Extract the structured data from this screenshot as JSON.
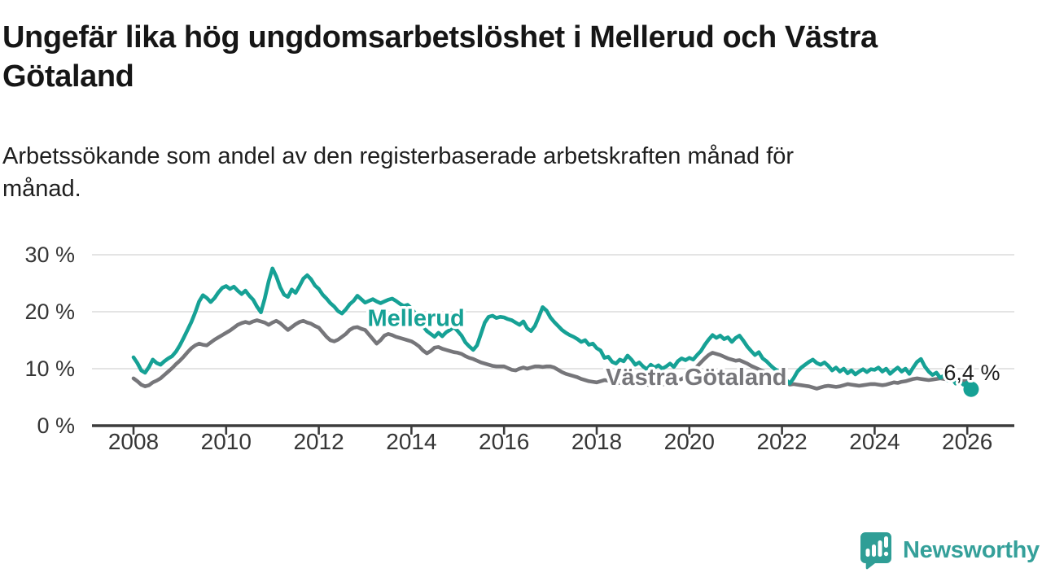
{
  "header": {
    "title_line1": "Ungefär lika hög ungdomsarbetslöshet i Mellerud och Västra",
    "title_line2": "Götaland",
    "subtitle_line1": "Arbetssökande som andel av den registerbaserade arbetskraften månad för",
    "subtitle_line2": "månad."
  },
  "chart_data": {
    "type": "line",
    "title": "Ungefär lika hög ungdomsarbetslöshet i Mellerud och Västra Götaland",
    "subtitle": "Arbetssökande som andel av den registerbaserade arbetskraften månad för månad.",
    "unit": "%",
    "x_start_year": 2008,
    "points_per_year": 12,
    "ylim": [
      0,
      30
    ],
    "grid": "horizontal",
    "y_ticks": [
      {
        "value": 0,
        "label": "0 %"
      },
      {
        "value": 10,
        "label": "10 %"
      },
      {
        "value": 20,
        "label": "20 %"
      },
      {
        "value": 30,
        "label": "30 %"
      }
    ],
    "x_ticks": [
      {
        "year": 2008,
        "label": "2008"
      },
      {
        "year": 2010,
        "label": "2010"
      },
      {
        "year": 2012,
        "label": "2012"
      },
      {
        "year": 2014,
        "label": "2014"
      },
      {
        "year": 2016,
        "label": "2016"
      },
      {
        "year": 2018,
        "label": "2018"
      },
      {
        "year": 2020,
        "label": "2020"
      },
      {
        "year": 2022,
        "label": "2022"
      },
      {
        "year": 2024,
        "label": "2024"
      },
      {
        "year": 2026,
        "label": "2026"
      }
    ],
    "series": [
      {
        "name": "Mellerud",
        "color": "#16a195",
        "label_pos": {
          "year": 2014.1,
          "value": 18.9
        },
        "end_dot": true,
        "values": [
          12.0,
          11.0,
          9.7,
          9.3,
          10.3,
          11.6,
          11.0,
          10.7,
          11.3,
          11.8,
          12.2,
          13.0,
          14.1,
          15.4,
          16.8,
          18.2,
          19.9,
          21.8,
          22.9,
          22.4,
          21.7,
          22.4,
          23.4,
          24.2,
          24.5,
          24.0,
          24.4,
          23.7,
          23.1,
          23.7,
          22.8,
          22.1,
          20.9,
          19.9,
          22.3,
          25.3,
          27.6,
          26.2,
          24.3,
          23.0,
          22.6,
          23.9,
          23.3,
          24.5,
          25.8,
          26.4,
          25.7,
          24.6,
          24.0,
          23.0,
          22.3,
          21.5,
          20.9,
          20.1,
          19.7,
          20.4,
          21.3,
          21.9,
          22.8,
          22.2,
          21.6,
          21.9,
          22.2,
          21.8,
          21.5,
          21.8,
          22.1,
          22.3,
          21.9,
          21.4,
          21.0,
          21.2,
          20.6,
          19.7,
          18.6,
          17.5,
          16.6,
          16.1,
          15.6,
          16.3,
          15.7,
          16.4,
          16.8,
          17.3,
          16.6,
          15.8,
          14.6,
          13.9,
          13.3,
          14.1,
          16.1,
          18.1,
          19.1,
          19.3,
          18.9,
          19.1,
          19.0,
          18.7,
          18.5,
          18.1,
          17.7,
          18.3,
          17.1,
          16.6,
          17.5,
          19.1,
          20.8,
          20.2,
          19.0,
          18.2,
          17.5,
          16.8,
          16.3,
          15.9,
          15.6,
          15.2,
          14.7,
          15.0,
          14.2,
          14.4,
          13.6,
          13.2,
          11.9,
          12.1,
          11.2,
          10.9,
          11.6,
          11.3,
          12.3,
          11.6,
          10.7,
          11.1,
          10.4,
          9.9,
          10.7,
          10.2,
          10.6,
          10.0,
          10.4,
          10.9,
          10.3,
          11.3,
          11.8,
          11.5,
          11.9,
          11.6,
          12.4,
          13.1,
          14.2,
          15.1,
          15.9,
          15.4,
          15.8,
          15.2,
          15.5,
          14.7,
          15.4,
          15.8,
          14.9,
          13.9,
          13.1,
          12.4,
          12.9,
          11.8,
          11.3,
          10.6,
          10.0,
          9.6,
          8.8,
          8.1,
          7.4,
          8.3,
          9.5,
          10.2,
          10.7,
          11.2,
          11.6,
          11.0,
          10.7,
          11.1,
          10.5,
          9.7,
          10.2,
          9.5,
          10.0,
          9.2,
          9.7,
          9.0,
          9.5,
          9.9,
          9.4,
          9.9,
          9.8,
          10.2,
          9.5,
          10.0,
          9.1,
          9.7,
          10.2,
          9.5,
          10.0,
          9.1,
          10.2,
          11.2,
          11.7,
          10.4,
          9.5,
          8.9,
          9.3,
          8.4,
          8.8,
          7.9,
          8.3,
          7.4,
          7.8,
          7.2,
          7.6,
          6.4
        ]
      },
      {
        "name": "Västra Götaland",
        "color": "#76767a",
        "label_pos": {
          "year": 2020.15,
          "value": 8.6
        },
        "end_dot": false,
        "values": [
          8.3,
          7.8,
          7.2,
          6.9,
          7.1,
          7.6,
          7.9,
          8.3,
          8.9,
          9.5,
          10.1,
          10.8,
          11.4,
          12.1,
          12.9,
          13.6,
          14.1,
          14.4,
          14.2,
          14.1,
          14.6,
          15.1,
          15.5,
          15.9,
          16.3,
          16.7,
          17.2,
          17.7,
          18.0,
          18.2,
          18.0,
          18.3,
          18.5,
          18.3,
          18.1,
          17.7,
          18.1,
          18.4,
          18.0,
          17.4,
          16.8,
          17.3,
          17.8,
          18.2,
          18.4,
          18.1,
          17.9,
          17.5,
          17.2,
          16.4,
          15.6,
          15.0,
          14.8,
          15.1,
          15.6,
          16.1,
          16.8,
          17.2,
          17.3,
          17.0,
          16.8,
          16.0,
          15.2,
          14.4,
          15.0,
          15.8,
          16.1,
          15.9,
          15.6,
          15.4,
          15.2,
          15.0,
          14.8,
          14.4,
          13.9,
          13.2,
          12.7,
          13.1,
          13.7,
          13.8,
          13.5,
          13.3,
          13.1,
          12.9,
          12.8,
          12.6,
          12.2,
          11.9,
          11.7,
          11.4,
          11.1,
          10.9,
          10.7,
          10.5,
          10.4,
          10.4,
          10.4,
          10.1,
          9.8,
          9.7,
          10.0,
          10.2,
          10.0,
          10.2,
          10.4,
          10.4,
          10.3,
          10.4,
          10.4,
          10.2,
          9.8,
          9.4,
          9.1,
          8.9,
          8.7,
          8.5,
          8.2,
          8.0,
          7.8,
          7.7,
          7.6,
          7.8,
          8.0,
          7.9,
          7.7,
          7.4,
          7.5,
          7.7,
          7.8,
          7.6,
          7.4,
          7.3,
          7.3,
          7.2,
          7.1,
          7.0,
          7.1,
          7.2,
          7.4,
          7.5,
          7.7,
          7.9,
          8.2,
          8.6,
          9.0,
          9.7,
          10.4,
          11.1,
          11.8,
          12.4,
          12.8,
          12.6,
          12.4,
          12.1,
          11.8,
          11.6,
          11.4,
          11.5,
          11.2,
          10.9,
          10.5,
          10.2,
          9.9,
          9.6,
          9.3,
          9.0,
          8.8,
          8.6,
          8.5,
          7.9,
          7.2,
          7.3,
          7.2,
          7.1,
          7.0,
          6.9,
          6.7,
          6.5,
          6.7,
          6.9,
          7.0,
          6.9,
          6.8,
          6.9,
          7.1,
          7.3,
          7.2,
          7.1,
          7.0,
          7.1,
          7.2,
          7.3,
          7.3,
          7.2,
          7.1,
          7.2,
          7.4,
          7.6,
          7.5,
          7.7,
          7.8,
          8.0,
          8.2,
          8.3,
          8.2,
          8.1,
          8.0,
          8.1,
          8.2,
          8.3,
          8.2,
          8.1,
          8.0,
          8.1,
          8.0,
          7.9,
          7.8,
          7.8
        ]
      }
    ],
    "end_annotation": {
      "text": "6,4 %",
      "series": "Mellerud"
    },
    "colors": {
      "grid": "#dbdbdb",
      "axis": "#3c3c3c",
      "tick_text": "#363636"
    }
  },
  "branding": {
    "logo_text": "Newsworthy",
    "logo_color": "#35a09a",
    "logo_icon": "bar-chart-speech-bubble"
  }
}
